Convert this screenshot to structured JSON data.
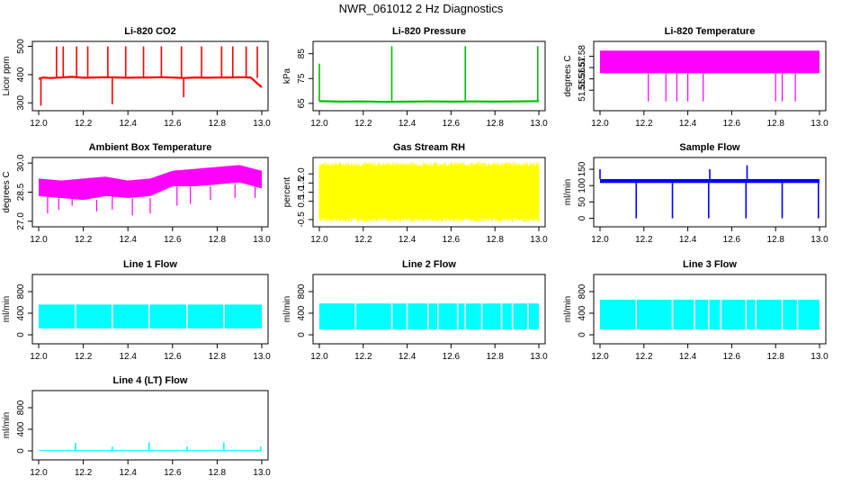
{
  "title": "NWR_061012  2 Hz Diagnostics",
  "chart_data": [
    {
      "type": "line",
      "title": "Li-820 CO2",
      "ylabel": "Licor ppm",
      "color": "#ff0000",
      "xlim": [
        12.0,
        13.0
      ],
      "ylim": [
        285,
        505
      ],
      "yticks": [
        "300",
        "400",
        "500"
      ],
      "xticks": [
        "12.0",
        "12.2",
        "12.4",
        "12.6",
        "12.8",
        "13.0"
      ],
      "series": [
        {
          "x": [
            12.0,
            12.02,
            12.05,
            12.1,
            12.15,
            12.2,
            12.25,
            12.3,
            12.35,
            12.4,
            12.45,
            12.5,
            12.55,
            12.6,
            12.65,
            12.7,
            12.75,
            12.8,
            12.85,
            12.9,
            12.95,
            13.0
          ],
          "values": [
            385,
            390,
            388,
            390,
            392,
            389,
            390,
            391,
            390,
            389,
            390,
            390,
            391,
            390,
            388,
            390,
            389,
            390,
            390,
            391,
            390,
            355
          ]
        }
      ],
      "spikes": [
        {
          "x": 12.01,
          "y": 290
        },
        {
          "x": 12.08,
          "y": 500
        },
        {
          "x": 12.11,
          "y": 500
        },
        {
          "x": 12.17,
          "y": 500
        },
        {
          "x": 12.22,
          "y": 500
        },
        {
          "x": 12.31,
          "y": 500
        },
        {
          "x": 12.33,
          "y": 295
        },
        {
          "x": 12.39,
          "y": 500
        },
        {
          "x": 12.47,
          "y": 500
        },
        {
          "x": 12.55,
          "y": 500
        },
        {
          "x": 12.64,
          "y": 500
        },
        {
          "x": 12.65,
          "y": 320
        },
        {
          "x": 12.73,
          "y": 500
        },
        {
          "x": 12.82,
          "y": 500
        },
        {
          "x": 12.87,
          "y": 500
        },
        {
          "x": 12.93,
          "y": 500
        },
        {
          "x": 12.98,
          "y": 500
        }
      ]
    },
    {
      "type": "line",
      "title": "Li-820 Pressure",
      "ylabel": "kPa",
      "color": "#00c000",
      "xlim": [
        12.0,
        13.0
      ],
      "ylim": [
        63.5,
        88.5
      ],
      "yticks": [
        "65",
        "75",
        "85"
      ],
      "xticks": [
        "12.0",
        "12.2",
        "12.4",
        "12.6",
        "12.8",
        "13.0"
      ],
      "series": [
        {
          "x": [
            12.0,
            12.1,
            12.2,
            12.3,
            12.4,
            12.5,
            12.6,
            12.7,
            12.8,
            12.9,
            13.0
          ],
          "values": [
            65.9,
            65.7,
            65.8,
            65.6,
            65.7,
            65.8,
            65.7,
            65.8,
            65.7,
            65.8,
            65.9
          ]
        }
      ],
      "spikes": [
        {
          "x": 12.0,
          "y": 81
        },
        {
          "x": 12.33,
          "y": 88
        },
        {
          "x": 12.665,
          "y": 88
        },
        {
          "x": 12.995,
          "y": 88
        }
      ]
    },
    {
      "type": "area",
      "title": "Li-820 Temperature",
      "ylabel": "degrees C",
      "color": "#ff00ff",
      "xlim": [
        12.0,
        13.0
      ],
      "ylim": [
        51.535,
        51.59
      ],
      "yticks": [
        "51.55",
        "51.56",
        "51.57",
        "51.58"
      ],
      "xticks": [
        "12.0",
        "12.2",
        "12.4",
        "12.6",
        "12.8",
        "13.0"
      ],
      "band": [
        51.565,
        51.585
      ],
      "dips": [
        {
          "x": 12.22,
          "y": 51.54
        },
        {
          "x": 12.3,
          "y": 51.54
        },
        {
          "x": 12.35,
          "y": 51.54
        },
        {
          "x": 12.4,
          "y": 51.54
        },
        {
          "x": 12.47,
          "y": 51.54
        },
        {
          "x": 12.8,
          "y": 51.54
        },
        {
          "x": 12.83,
          "y": 51.54
        },
        {
          "x": 12.89,
          "y": 51.54
        }
      ]
    },
    {
      "type": "area",
      "title": "Ambient Box Temperature",
      "ylabel": "degrees C",
      "color": "#ff00ff",
      "xlim": [
        12.0,
        13.0
      ],
      "ylim": [
        26.9,
        30.1
      ],
      "yticks": [
        "27.0",
        "28.5",
        "30.0"
      ],
      "xticks": [
        "12.0",
        "12.2",
        "12.4",
        "12.6",
        "12.8",
        "13.0"
      ],
      "x": [
        12.0,
        12.1,
        12.2,
        12.3,
        12.4,
        12.5,
        12.6,
        12.7,
        12.8,
        12.9,
        13.0
      ],
      "lower": [
        28.3,
        28.2,
        28.1,
        28.3,
        28.2,
        28.3,
        28.8,
        28.8,
        28.9,
        29.0,
        28.7
      ],
      "upper": [
        29.2,
        29.1,
        29.2,
        29.3,
        29.1,
        29.2,
        29.6,
        29.7,
        29.8,
        29.9,
        29.6
      ],
      "dips": [
        {
          "x": 12.04,
          "y": 27.4
        },
        {
          "x": 12.09,
          "y": 27.6
        },
        {
          "x": 12.15,
          "y": 27.8
        },
        {
          "x": 12.26,
          "y": 27.5
        },
        {
          "x": 12.33,
          "y": 27.6
        },
        {
          "x": 12.42,
          "y": 27.3
        },
        {
          "x": 12.5,
          "y": 27.4
        },
        {
          "x": 12.62,
          "y": 27.8
        },
        {
          "x": 12.68,
          "y": 27.9
        },
        {
          "x": 12.77,
          "y": 28.1
        },
        {
          "x": 12.88,
          "y": 28.2
        },
        {
          "x": 12.97,
          "y": 28.2
        }
      ]
    },
    {
      "type": "area",
      "title": "Gas Stream RH",
      "ylabel": "percent",
      "color": "#ffff00",
      "xlim": [
        12.0,
        13.0
      ],
      "ylim": [
        -0.7,
        2.7
      ],
      "yticks": [
        "-0.5",
        "0.5",
        "1.0",
        "1.5",
        "2.0"
      ],
      "xticks": [
        "12.0",
        "12.2",
        "12.4",
        "12.6",
        "12.8",
        "13.0"
      ],
      "band": [
        -0.4,
        2.4
      ]
    },
    {
      "type": "line",
      "title": "Sample Flow",
      "ylabel": "ml/min",
      "color": "#0000ff",
      "xlim": [
        12.0,
        13.0
      ],
      "ylim": [
        -15,
        175
      ],
      "yticks": [
        "0",
        "50",
        "100",
        "150"
      ],
      "xticks": [
        "12.0",
        "12.2",
        "12.4",
        "12.6",
        "12.8",
        "13.0"
      ],
      "band": [
        108,
        120
      ],
      "spikes": [
        {
          "x": 12.0,
          "y": 150
        },
        {
          "x": 12.165,
          "y": 0
        },
        {
          "x": 12.33,
          "y": 0
        },
        {
          "x": 12.495,
          "y": 0
        },
        {
          "x": 12.5,
          "y": 150
        },
        {
          "x": 12.665,
          "y": 0
        },
        {
          "x": 12.67,
          "y": 162
        },
        {
          "x": 12.83,
          "y": 0
        },
        {
          "x": 12.995,
          "y": 0
        }
      ]
    },
    {
      "type": "area",
      "title": "Line 1 Flow",
      "ylabel": "ml/min",
      "color": "#00ffff",
      "xlim": [
        12.0,
        13.0
      ],
      "ylim": [
        -100,
        1050
      ],
      "yticks": [
        "0",
        "400",
        "800"
      ],
      "xticks": [
        "12.0",
        "12.2",
        "12.4",
        "12.6",
        "12.8",
        "13.0"
      ],
      "band": [
        120,
        560
      ],
      "gaps": [
        12.165,
        12.33,
        12.495,
        12.665,
        12.83
      ]
    },
    {
      "type": "area",
      "title": "Line 2 Flow",
      "ylabel": "ml/min",
      "color": "#00ffff",
      "xlim": [
        12.0,
        13.0
      ],
      "ylim": [
        -100,
        1050
      ],
      "yticks": [
        "0",
        "400",
        "800"
      ],
      "xticks": [
        "12.0",
        "12.2",
        "12.4",
        "12.6",
        "12.8",
        "13.0"
      ],
      "band": [
        100,
        580
      ],
      "gaps": [
        12.165,
        12.33,
        12.4,
        12.495,
        12.54,
        12.63,
        12.665,
        12.74,
        12.83,
        12.88,
        12.95
      ]
    },
    {
      "type": "area",
      "title": "Line 3 Flow",
      "ylabel": "ml/min",
      "color": "#00ffff",
      "xlim": [
        12.0,
        13.0
      ],
      "ylim": [
        -100,
        1050
      ],
      "yticks": [
        "0",
        "400",
        "800"
      ],
      "xticks": [
        "12.0",
        "12.2",
        "12.4",
        "12.6",
        "12.8",
        "13.0"
      ],
      "band": [
        100,
        650
      ],
      "gaps": [
        12.165,
        12.33,
        12.43,
        12.495,
        12.55,
        12.665,
        12.71,
        12.83,
        12.9
      ]
    },
    {
      "type": "line",
      "title": "Line 4 (LT) Flow",
      "ylabel": "ml/min",
      "color": "#00ffff",
      "xlim": [
        12.0,
        13.0
      ],
      "ylim": [
        -100,
        1050
      ],
      "yticks": [
        "0",
        "400",
        "800"
      ],
      "xticks": [
        "12.0",
        "12.2",
        "12.4",
        "12.6",
        "12.8",
        "13.0"
      ],
      "band": [
        0,
        15
      ],
      "spikes": [
        {
          "x": 12.165,
          "y": 150
        },
        {
          "x": 12.33,
          "y": 80
        },
        {
          "x": 12.495,
          "y": 160
        },
        {
          "x": 12.665,
          "y": 80
        },
        {
          "x": 12.83,
          "y": 160
        },
        {
          "x": 12.995,
          "y": 80
        }
      ]
    }
  ]
}
